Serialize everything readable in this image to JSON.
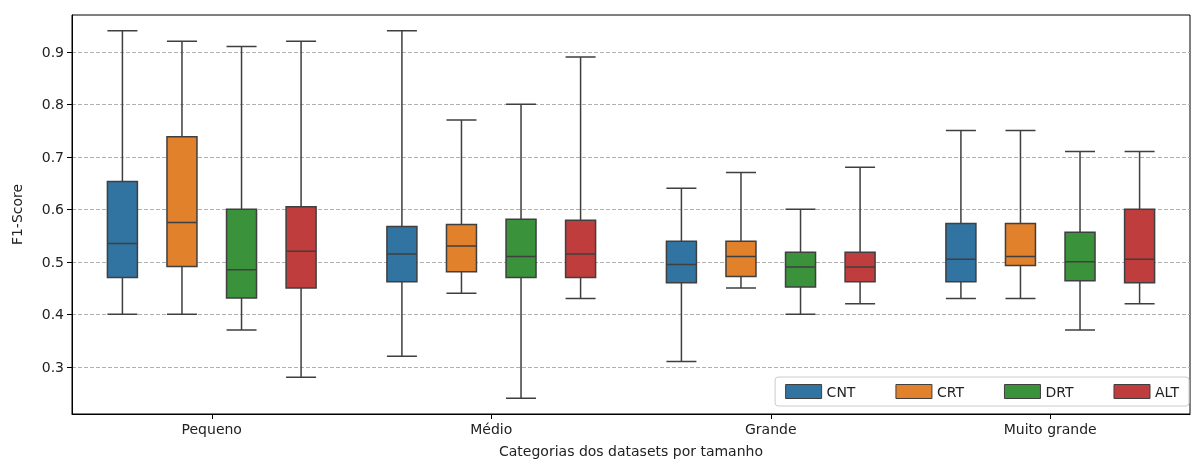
{
  "chart_data": {
    "type": "box",
    "xlabel": "Categorias dos datasets por tamanho",
    "ylabel": "F1-Score",
    "categories": [
      "Pequeno",
      "Médio",
      "Grande",
      "Muito grande"
    ],
    "ylim": [
      0.21,
      0.97
    ],
    "yticks": [
      0.3,
      0.4,
      0.5,
      0.6,
      0.7,
      0.8,
      0.9
    ],
    "grid": "y",
    "legend": "bottom right",
    "series": [
      {
        "name": "CNT",
        "color": "#3274a1",
        "boxes": [
          {
            "low": 0.4,
            "q1": 0.47,
            "median": 0.535,
            "q3": 0.653,
            "high": 0.94
          },
          {
            "low": 0.32,
            "q1": 0.462,
            "median": 0.515,
            "q3": 0.567,
            "high": 0.94
          },
          {
            "low": 0.31,
            "q1": 0.46,
            "median": 0.495,
            "q3": 0.539,
            "high": 0.64
          },
          {
            "low": 0.43,
            "q1": 0.462,
            "median": 0.505,
            "q3": 0.573,
            "high": 0.75
          }
        ]
      },
      {
        "name": "CRT",
        "color": "#e1812c",
        "boxes": [
          {
            "low": 0.4,
            "q1": 0.491,
            "median": 0.575,
            "q3": 0.738,
            "high": 0.92
          },
          {
            "low": 0.44,
            "q1": 0.481,
            "median": 0.53,
            "q3": 0.571,
            "high": 0.77
          },
          {
            "low": 0.45,
            "q1": 0.472,
            "median": 0.51,
            "q3": 0.539,
            "high": 0.67
          },
          {
            "low": 0.43,
            "q1": 0.493,
            "median": 0.51,
            "q3": 0.573,
            "high": 0.75
          }
        ]
      },
      {
        "name": "DRT",
        "color": "#3a923a",
        "boxes": [
          {
            "low": 0.37,
            "q1": 0.431,
            "median": 0.485,
            "q3": 0.6,
            "high": 0.91
          },
          {
            "low": 0.24,
            "q1": 0.47,
            "median": 0.51,
            "q3": 0.581,
            "high": 0.8
          },
          {
            "low": 0.4,
            "q1": 0.452,
            "median": 0.49,
            "q3": 0.518,
            "high": 0.6
          },
          {
            "low": 0.37,
            "q1": 0.464,
            "median": 0.5,
            "q3": 0.556,
            "high": 0.71
          }
        ]
      },
      {
        "name": "ALT",
        "color": "#c03d3e",
        "boxes": [
          {
            "low": 0.28,
            "q1": 0.45,
            "median": 0.52,
            "q3": 0.605,
            "high": 0.92
          },
          {
            "low": 0.43,
            "q1": 0.47,
            "median": 0.515,
            "q3": 0.579,
            "high": 0.89
          },
          {
            "low": 0.42,
            "q1": 0.462,
            "median": 0.49,
            "q3": 0.518,
            "high": 0.68
          },
          {
            "low": 0.42,
            "q1": 0.46,
            "median": 0.505,
            "q3": 0.6,
            "high": 0.71
          }
        ]
      }
    ]
  }
}
